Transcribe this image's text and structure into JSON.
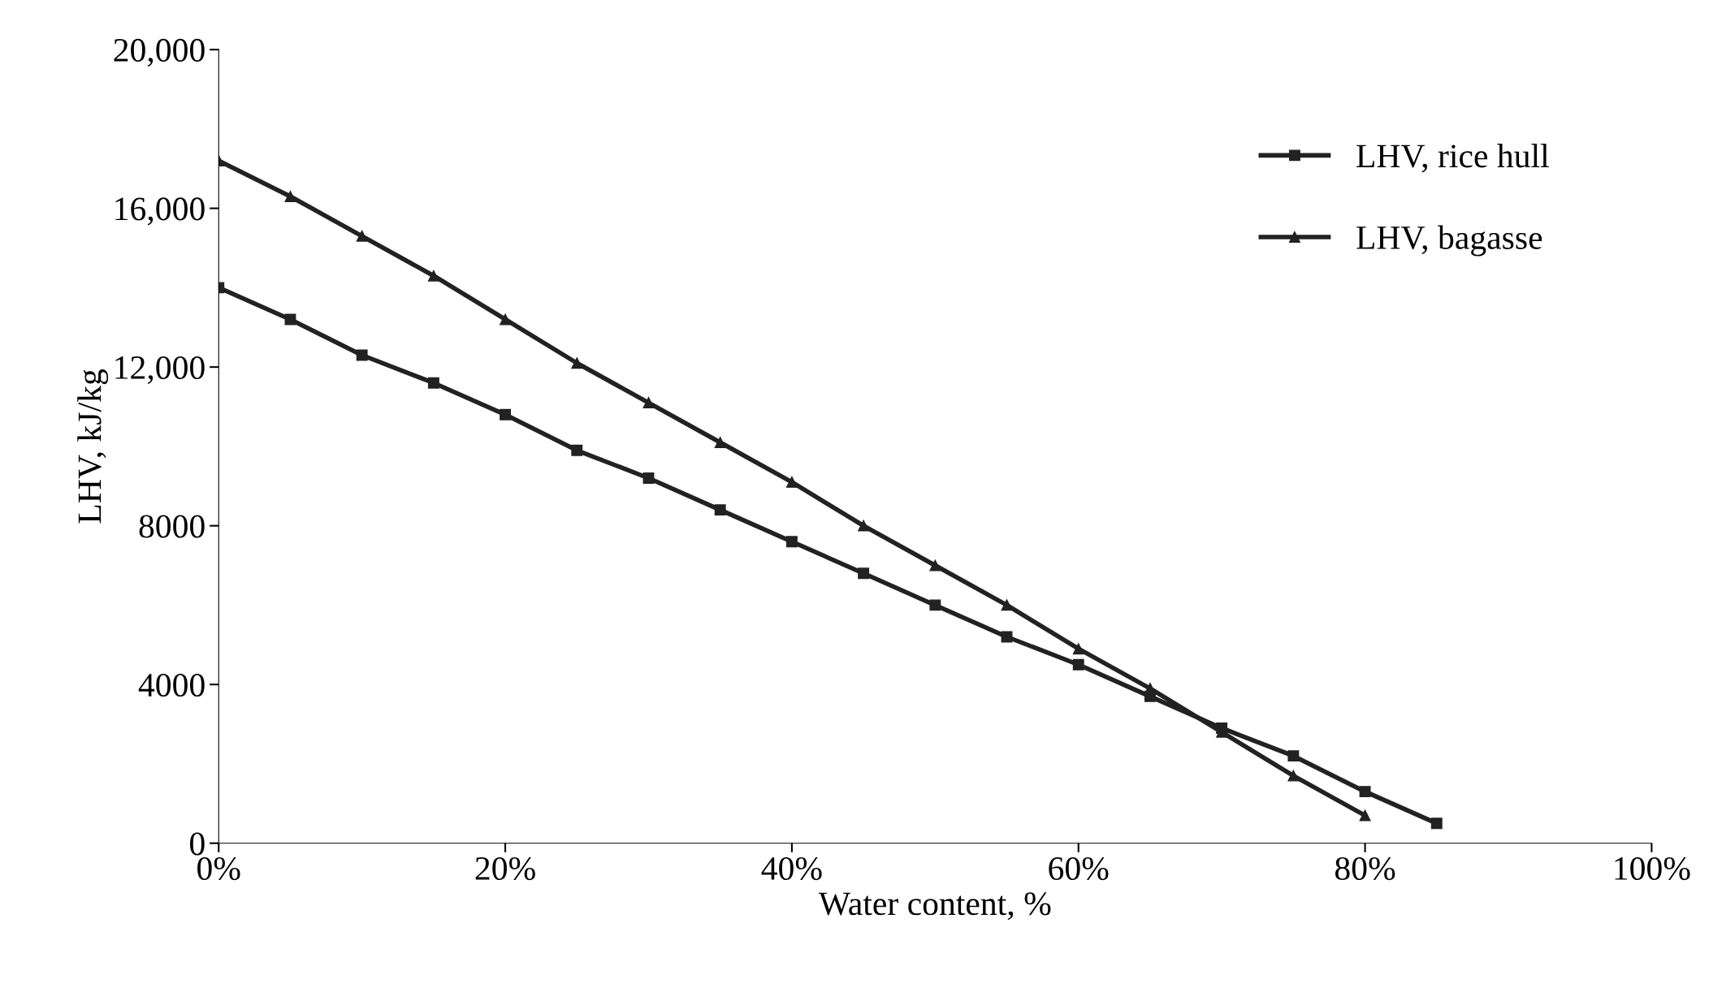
{
  "chart_data": {
    "type": "line",
    "xlabel": "Water content, %",
    "ylabel": "LHV, kJ/kg",
    "series": [
      {
        "name": "LHV, rice hull",
        "color": "#222222",
        "marker": "square",
        "x": [
          0,
          5,
          10,
          15,
          20,
          25,
          30,
          35,
          40,
          45,
          50,
          55,
          60,
          65,
          70,
          75,
          80,
          85
        ],
        "values": [
          14000,
          13200,
          12300,
          11600,
          10800,
          9900,
          9200,
          8400,
          7600,
          6800,
          6000,
          5200,
          4500,
          3700,
          2900,
          2200,
          1300,
          500
        ]
      },
      {
        "name": "LHV, bagasse",
        "color": "#222222",
        "marker": "triangle",
        "x": [
          0,
          5,
          10,
          15,
          20,
          25,
          30,
          35,
          40,
          45,
          50,
          55,
          60,
          65,
          70,
          75,
          80
        ],
        "values": [
          17200,
          16300,
          15300,
          14300,
          13200,
          12100,
          11100,
          10100,
          9100,
          8000,
          7000,
          6000,
          4900,
          3900,
          2800,
          1700,
          700
        ]
      }
    ],
    "xlim": [
      0,
      100
    ],
    "xticks": [
      {
        "value": 0,
        "label": "0%"
      },
      {
        "value": 20,
        "label": "20%"
      },
      {
        "value": 40,
        "label": "40%"
      },
      {
        "value": 60,
        "label": "60%"
      },
      {
        "value": 80,
        "label": "80%"
      },
      {
        "value": 100,
        "label": "100%"
      }
    ],
    "ylim": [
      0,
      20000
    ],
    "yticks": [
      0,
      4000,
      8000,
      {
        "value": 12000,
        "label": "12,000"
      },
      {
        "value": 16000,
        "label": "16,000"
      },
      {
        "value": 20000,
        "label": "20,000"
      }
    ],
    "grid": false,
    "legend": "top right",
    "line_style": "solid"
  }
}
